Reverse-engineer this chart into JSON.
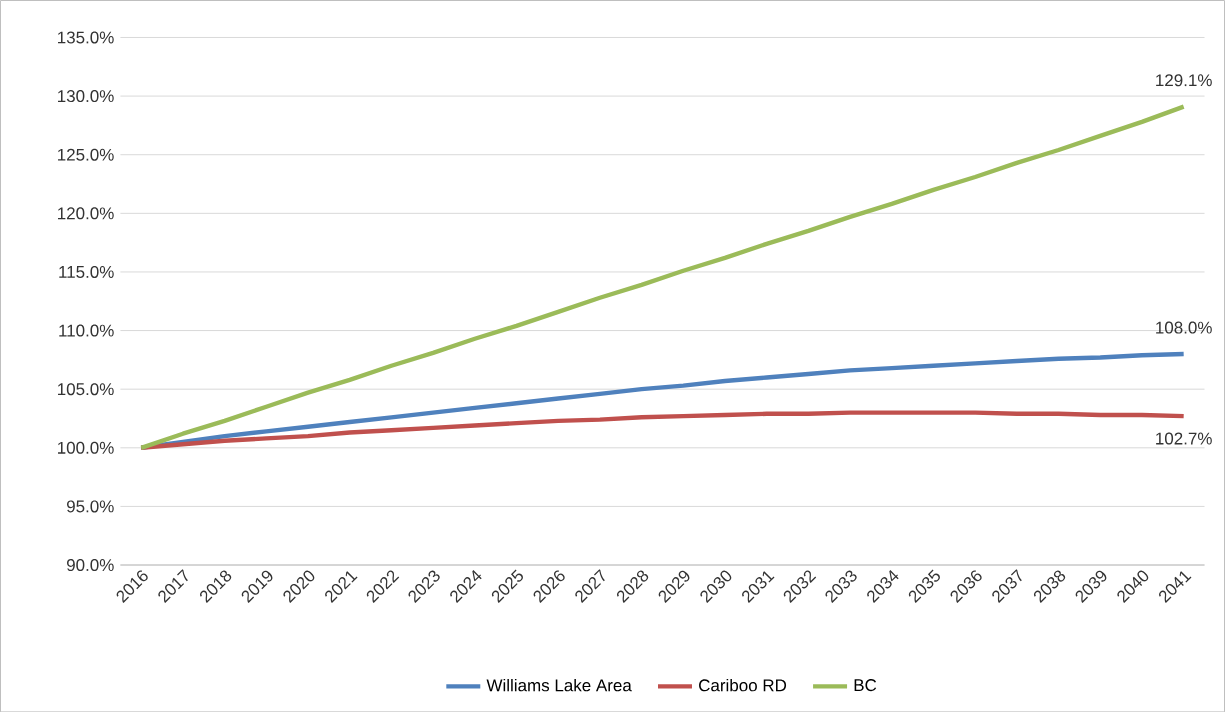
{
  "chart_data": {
    "type": "line",
    "categories": [
      "2016",
      "2017",
      "2018",
      "2019",
      "2020",
      "2021",
      "2022",
      "2023",
      "2024",
      "2025",
      "2026",
      "2027",
      "2028",
      "2029",
      "2030",
      "2031",
      "2032",
      "2033",
      "2034",
      "2035",
      "2036",
      "2037",
      "2038",
      "2039",
      "2040",
      "2041"
    ],
    "series": [
      {
        "name": "Williams Lake Area",
        "color": "#4f81bd",
        "values": [
          100,
          100.5,
          101.0,
          101.4,
          101.8,
          102.2,
          102.6,
          103.0,
          103.4,
          103.8,
          104.2,
          104.6,
          105.0,
          105.3,
          105.7,
          106.0,
          106.3,
          106.6,
          106.8,
          107.0,
          107.2,
          107.4,
          107.6,
          107.7,
          107.9,
          108.0
        ],
        "value_labels": [
          null,
          null,
          null,
          null,
          null,
          null,
          null,
          null,
          null,
          null,
          null,
          null,
          null,
          null,
          null,
          null,
          null,
          null,
          null,
          null,
          null,
          null,
          null,
          null,
          null,
          "108.0%"
        ]
      },
      {
        "name": "Cariboo RD",
        "color": "#c0504d",
        "values": [
          100,
          100.3,
          100.6,
          100.8,
          101.0,
          101.3,
          101.5,
          101.7,
          101.9,
          102.1,
          102.3,
          102.4,
          102.6,
          102.7,
          102.8,
          102.9,
          102.9,
          103.0,
          103.0,
          103.0,
          103.0,
          102.9,
          102.9,
          102.8,
          102.8,
          102.7
        ],
        "value_labels": [
          null,
          null,
          null,
          null,
          null,
          null,
          null,
          null,
          null,
          null,
          null,
          null,
          null,
          null,
          null,
          null,
          null,
          null,
          null,
          null,
          null,
          null,
          null,
          null,
          null,
          "102.7%"
        ]
      },
      {
        "name": "BC",
        "color": "#9bbb59",
        "values": [
          100,
          101.2,
          102.3,
          103.5,
          104.7,
          105.8,
          107.0,
          108.1,
          109.3,
          110.4,
          111.6,
          112.8,
          113.9,
          115.1,
          116.2,
          117.4,
          118.5,
          119.7,
          120.8,
          122.0,
          123.1,
          124.3,
          125.4,
          126.6,
          127.8,
          129.1
        ],
        "value_labels": [
          null,
          null,
          null,
          null,
          null,
          null,
          null,
          null,
          null,
          null,
          null,
          null,
          null,
          null,
          null,
          null,
          null,
          null,
          null,
          null,
          null,
          null,
          null,
          null,
          null,
          "129.1%"
        ]
      }
    ],
    "ylim": [
      90,
      135
    ],
    "yticks": [
      {
        "value": 90,
        "label": "90.0%"
      },
      {
        "value": 95,
        "label": "95.0%"
      },
      {
        "value": 100,
        "label": "100.0%"
      },
      {
        "value": 105,
        "label": "105.0%"
      },
      {
        "value": 110,
        "label": "110.0%"
      },
      {
        "value": 115,
        "label": "115.0%"
      },
      {
        "value": 120,
        "label": "120.0%"
      },
      {
        "value": 125,
        "label": "125.0%"
      },
      {
        "value": 130,
        "label": "130.0%"
      },
      {
        "value": 135,
        "label": "135.0%"
      }
    ],
    "grid": "y",
    "legend": "bottom",
    "marker": "none",
    "line_style": "solid"
  }
}
